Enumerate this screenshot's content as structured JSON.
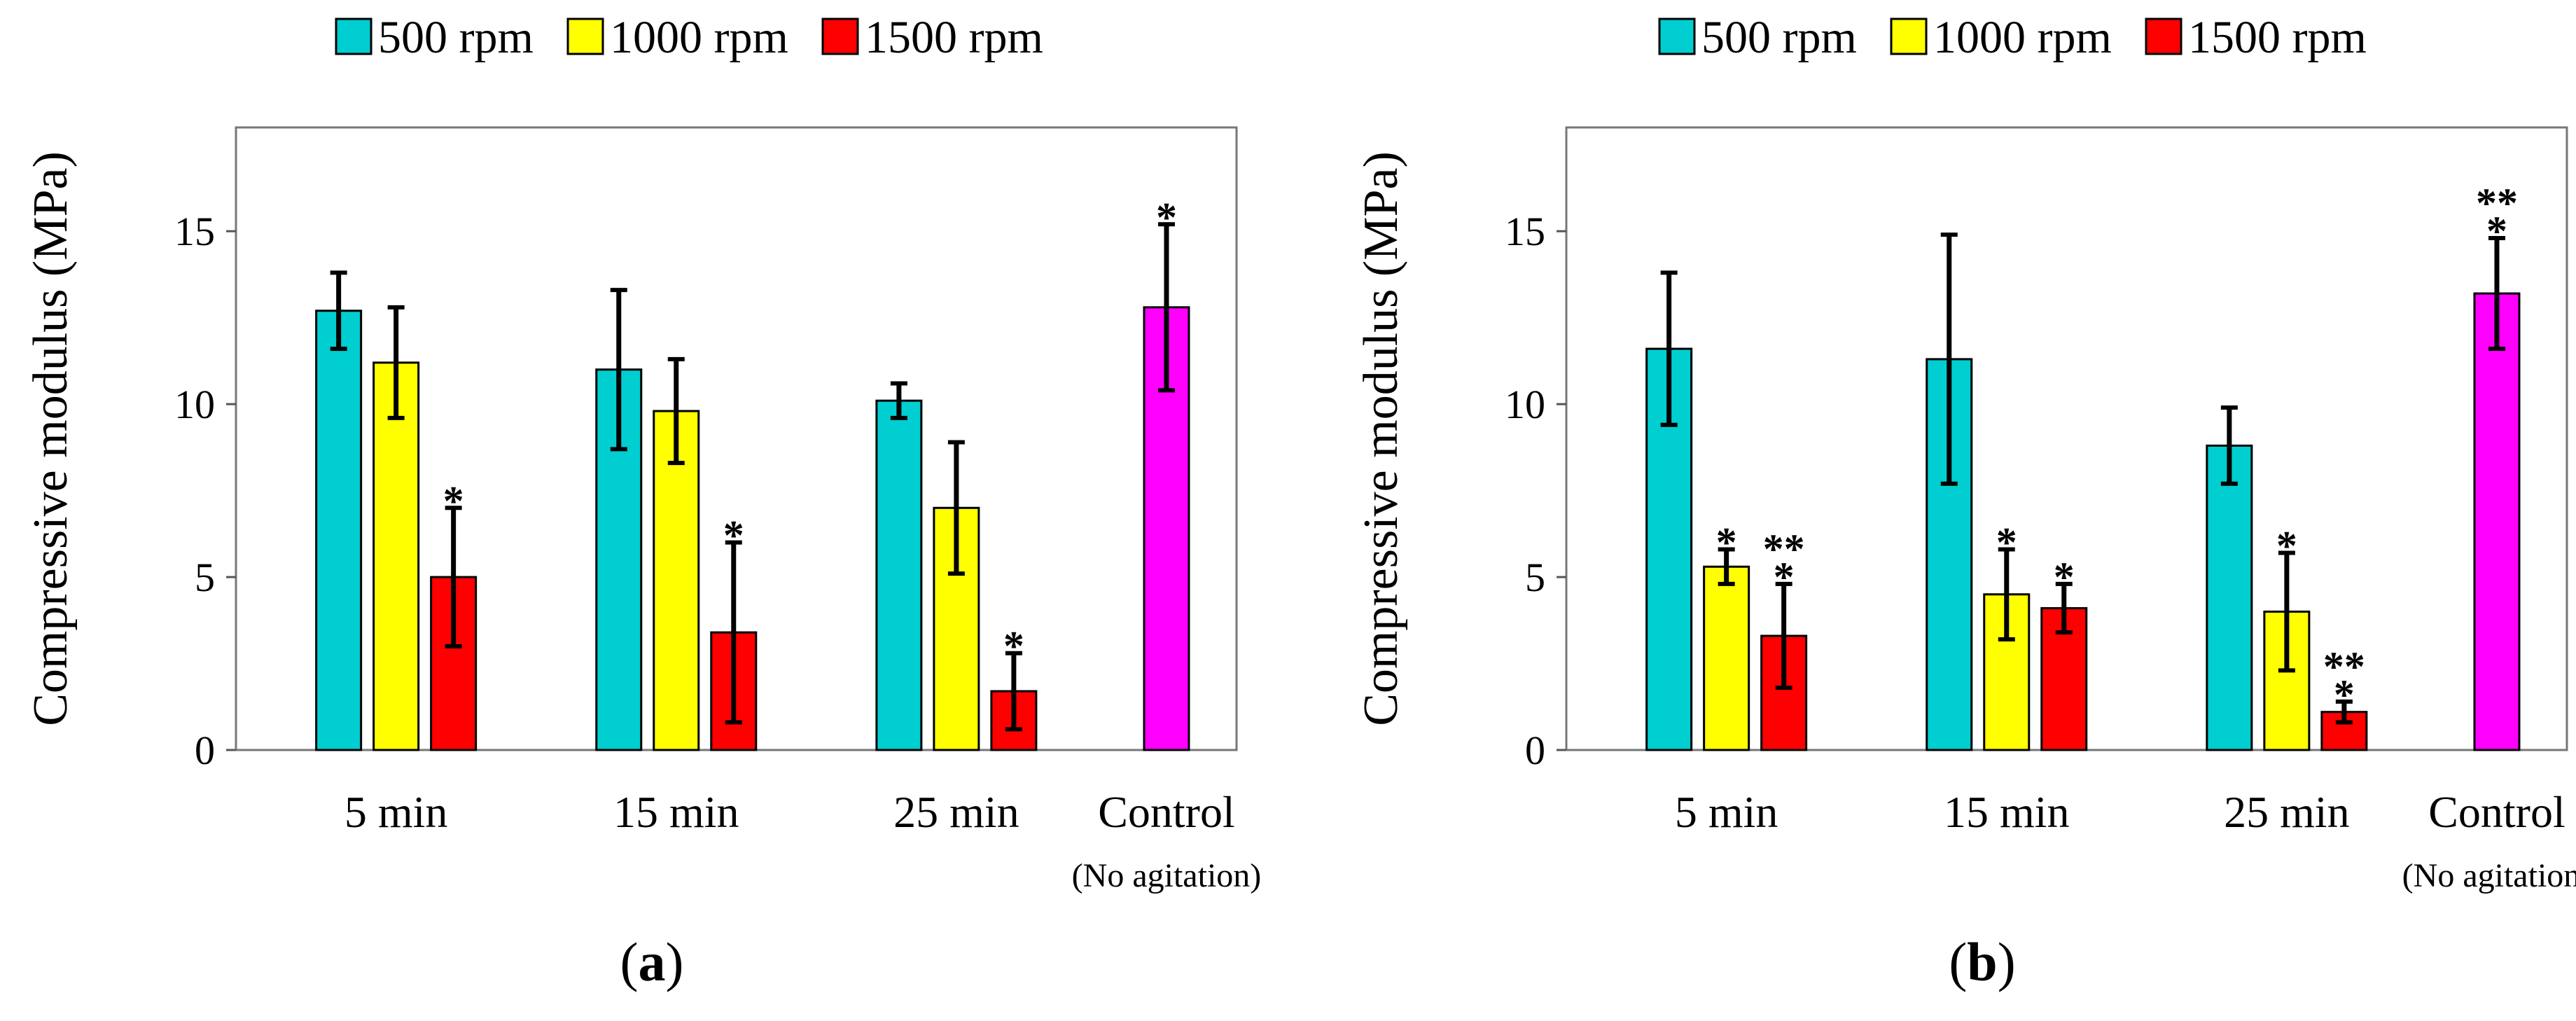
{
  "chart_data": [
    {
      "type": "bar",
      "panel_label": "a",
      "ylabel": "Compressive modulus (MPa)",
      "ylim": [
        0,
        18
      ],
      "yticks": [
        "0",
        "5",
        "10",
        "15"
      ],
      "categories": [
        "5 min",
        "15 min",
        "25 min",
        "Control"
      ],
      "category_sublabels": [
        "",
        "",
        "",
        "(No agitation)"
      ],
      "legend": [
        "500 rpm",
        "1000 rpm",
        "1500 rpm"
      ],
      "series": [
        {
          "name": "500 rpm",
          "color": "#00CED1",
          "values": [
            12.7,
            11.0,
            10.1,
            null
          ],
          "errors": [
            1.1,
            2.3,
            0.5,
            null
          ],
          "stars": [
            "",
            "",
            "",
            ""
          ]
        },
        {
          "name": "1000 rpm",
          "color": "#FFFF00",
          "values": [
            11.2,
            9.8,
            7.0,
            null
          ],
          "errors": [
            1.6,
            1.5,
            1.9,
            null
          ],
          "stars": [
            "",
            "",
            "",
            ""
          ]
        },
        {
          "name": "1500 rpm",
          "color": "#FF0000",
          "values": [
            5.0,
            3.4,
            1.7,
            null
          ],
          "errors": [
            2.0,
            2.6,
            1.1,
            null
          ],
          "stars": [
            "*",
            "*",
            "*",
            ""
          ]
        },
        {
          "name": "Control",
          "color": "#FF00FF",
          "in_legend": false,
          "values": [
            null,
            null,
            null,
            12.8
          ],
          "errors": [
            null,
            null,
            null,
            2.4
          ],
          "stars": [
            "",
            "",
            "",
            "*"
          ]
        }
      ]
    },
    {
      "type": "bar",
      "panel_label": "b",
      "ylabel": "Compressive modulus (MPa)",
      "ylim": [
        0,
        18
      ],
      "yticks": [
        "0",
        "5",
        "10",
        "15"
      ],
      "categories": [
        "5 min",
        "15 min",
        "25 min",
        "Control"
      ],
      "category_sublabels": [
        "",
        "",
        "",
        "(No agitation)"
      ],
      "legend": [
        "500 rpm",
        "1000 rpm",
        "1500 rpm"
      ],
      "series": [
        {
          "name": "500 rpm",
          "color": "#00CED1",
          "values": [
            11.6,
            11.3,
            8.8,
            null
          ],
          "errors": [
            2.2,
            3.6,
            1.1,
            null
          ],
          "stars": [
            "",
            "",
            "",
            ""
          ]
        },
        {
          "name": "1000 rpm",
          "color": "#FFFF00",
          "values": [
            5.3,
            4.5,
            4.0,
            null
          ],
          "errors": [
            0.5,
            1.3,
            1.7,
            null
          ],
          "stars": [
            "*",
            "*",
            "*",
            ""
          ]
        },
        {
          "name": "1500 rpm",
          "color": "#FF0000",
          "values": [
            3.3,
            4.1,
            1.1,
            null
          ],
          "errors": [
            1.5,
            0.7,
            0.3,
            null
          ],
          "stars": [
            "**\n*",
            "*",
            "**\n*",
            ""
          ]
        },
        {
          "name": "Control",
          "color": "#FF00FF",
          "in_legend": false,
          "values": [
            null,
            null,
            null,
            13.2
          ],
          "errors": [
            null,
            null,
            null,
            1.6
          ],
          "stars": [
            "",
            "",
            "",
            "**\n*"
          ]
        }
      ]
    }
  ]
}
